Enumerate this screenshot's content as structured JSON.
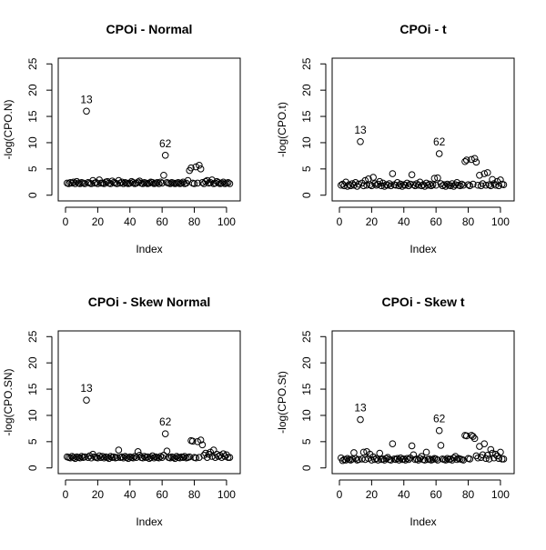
{
  "chart_data": [
    {
      "type": "scatter",
      "title": "CPOi - Normal",
      "xlabel": "Index",
      "ylabel": "-log(CPO.N)",
      "xlim": [
        0,
        104
      ],
      "ylim": [
        0,
        25
      ],
      "xticks": [
        0,
        20,
        40,
        60,
        80,
        100
      ],
      "yticks": [
        0,
        5,
        10,
        15,
        20,
        25
      ],
      "annotations": [
        {
          "label": "13",
          "x": 13,
          "y": 16.0
        },
        {
          "label": "62",
          "x": 62,
          "y": 7.6
        }
      ],
      "series": [
        {
          "x": [
            1,
            2,
            3,
            4,
            5,
            6,
            7,
            8,
            9,
            10,
            11,
            12,
            13,
            14,
            15,
            16,
            17,
            18,
            19,
            20,
            21,
            22,
            23,
            24,
            25,
            26,
            27,
            28,
            29,
            30,
            31,
            32,
            33,
            34,
            35,
            36,
            37,
            38,
            39,
            40,
            41,
            42,
            43,
            44,
            45,
            46,
            47,
            48,
            49,
            50,
            51,
            52,
            53,
            54,
            55,
            56,
            57,
            58,
            59,
            60,
            61,
            62,
            63,
            64,
            65,
            66,
            67,
            68,
            69,
            70,
            71,
            72,
            73,
            74,
            75,
            76,
            77,
            78,
            79,
            80,
            81,
            82,
            83,
            84,
            85,
            86,
            87,
            88,
            89,
            90,
            91,
            92,
            93,
            94,
            95,
            96,
            97,
            98,
            99,
            100,
            101,
            102
          ],
          "y": [
            2.3,
            2.2,
            2.4,
            2.3,
            2.5,
            2.2,
            2.6,
            2.3,
            2.2,
            2.4,
            2.3,
            2.2,
            16.0,
            2.4,
            2.3,
            2.2,
            2.8,
            2.3,
            2.4,
            2.2,
            2.9,
            2.3,
            2.3,
            2.2,
            2.5,
            2.6,
            2.3,
            2.2,
            2.7,
            2.4,
            2.3,
            2.2,
            2.8,
            2.3,
            2.5,
            2.2,
            2.4,
            2.3,
            2.2,
            2.3,
            2.6,
            2.4,
            2.2,
            2.3,
            2.5,
            2.7,
            2.3,
            2.2,
            2.4,
            2.3,
            2.2,
            2.3,
            2.5,
            2.4,
            2.2,
            2.3,
            2.4,
            2.2,
            2.5,
            2.3,
            3.8,
            7.6,
            2.4,
            2.3,
            2.2,
            2.4,
            2.3,
            2.2,
            2.3,
            2.4,
            2.2,
            2.3,
            2.5,
            2.2,
            2.3,
            2.8,
            4.7,
            5.2,
            2.3,
            2.2,
            5.4,
            2.3,
            5.7,
            5.0,
            2.4,
            2.2,
            2.6,
            2.8,
            2.3,
            2.4,
            2.9,
            2.2,
            2.3,
            2.6,
            2.4,
            2.2,
            2.3,
            2.5,
            2.2,
            2.3,
            2.4,
            2.2
          ]
        }
      ]
    },
    {
      "type": "scatter",
      "title": "CPOi - t",
      "xlabel": "Index",
      "ylabel": "-log(CPO.t)",
      "xlim": [
        0,
        104
      ],
      "ylim": [
        0,
        25
      ],
      "xticks": [
        0,
        20,
        40,
        60,
        80,
        100
      ],
      "yticks": [
        0,
        5,
        10,
        15,
        20,
        25
      ],
      "annotations": [
        {
          "label": "13",
          "x": 13,
          "y": 10.2
        },
        {
          "label": "62",
          "x": 62,
          "y": 7.9
        }
      ],
      "series": [
        {
          "x": [
            1,
            2,
            3,
            4,
            5,
            6,
            7,
            8,
            9,
            10,
            11,
            12,
            13,
            14,
            15,
            16,
            17,
            18,
            19,
            20,
            21,
            22,
            23,
            24,
            25,
            26,
            27,
            28,
            29,
            30,
            31,
            32,
            33,
            34,
            35,
            36,
            37,
            38,
            39,
            40,
            41,
            42,
            43,
            44,
            45,
            46,
            47,
            48,
            49,
            50,
            51,
            52,
            53,
            54,
            55,
            56,
            57,
            58,
            59,
            60,
            61,
            62,
            63,
            64,
            65,
            66,
            67,
            68,
            69,
            70,
            71,
            72,
            73,
            74,
            75,
            76,
            77,
            78,
            79,
            80,
            81,
            82,
            83,
            84,
            85,
            86,
            87,
            88,
            89,
            90,
            91,
            92,
            93,
            94,
            95,
            96,
            97,
            98,
            99,
            100,
            101,
            102
          ],
          "y": [
            1.9,
            2.1,
            1.8,
            2.5,
            1.7,
            2.0,
            1.8,
            2.2,
            1.9,
            2.4,
            1.7,
            2.1,
            10.2,
            2.3,
            1.8,
            2.8,
            1.9,
            3.1,
            2.0,
            1.8,
            3.4,
            2.2,
            1.9,
            2.1,
            2.6,
            1.8,
            2.3,
            1.7,
            2.0,
            1.9,
            2.2,
            1.8,
            4.1,
            2.0,
            1.9,
            2.4,
            1.8,
            2.1,
            1.7,
            2.0,
            1.9,
            2.3,
            1.8,
            2.1,
            3.9,
            2.0,
            1.8,
            2.2,
            1.9,
            2.5,
            1.8,
            2.0,
            1.7,
            2.3,
            1.9,
            2.1,
            1.8,
            2.0,
            3.2,
            1.9,
            3.3,
            7.9,
            2.2,
            1.8,
            2.0,
            1.7,
            2.1,
            1.9,
            1.8,
            2.2,
            1.7,
            2.0,
            2.4,
            1.9,
            1.8,
            2.1,
            1.9,
            6.4,
            6.7,
            2.0,
            1.8,
            6.8,
            2.1,
            7.0,
            6.3,
            1.9,
            3.8,
            1.8,
            2.2,
            4.1,
            1.9,
            4.3,
            2.0,
            1.8,
            3.0,
            2.2,
            1.9,
            2.6,
            1.8,
            2.9,
            2.1,
            2.0
          ]
        }
      ]
    },
    {
      "type": "scatter",
      "title": "CPOi - Skew Normal",
      "xlabel": "Index",
      "ylabel": "-log(CPO.SN)",
      "xlim": [
        0,
        104
      ],
      "ylim": [
        0,
        25
      ],
      "xticks": [
        0,
        20,
        40,
        60,
        80,
        100
      ],
      "yticks": [
        0,
        5,
        10,
        15,
        20,
        25
      ],
      "annotations": [
        {
          "label": "13",
          "x": 13,
          "y": 12.9
        },
        {
          "label": "62",
          "x": 62,
          "y": 6.5
        }
      ],
      "series": [
        {
          "x": [
            1,
            2,
            3,
            4,
            5,
            6,
            7,
            8,
            9,
            10,
            11,
            12,
            13,
            14,
            15,
            16,
            17,
            18,
            19,
            20,
            21,
            22,
            23,
            24,
            25,
            26,
            27,
            28,
            29,
            30,
            31,
            32,
            33,
            34,
            35,
            36,
            37,
            38,
            39,
            40,
            41,
            42,
            43,
            44,
            45,
            46,
            47,
            48,
            49,
            50,
            51,
            52,
            53,
            54,
            55,
            56,
            57,
            58,
            59,
            60,
            61,
            62,
            63,
            64,
            65,
            66,
            67,
            68,
            69,
            70,
            71,
            72,
            73,
            74,
            75,
            76,
            77,
            78,
            79,
            80,
            81,
            82,
            83,
            84,
            85,
            86,
            87,
            88,
            89,
            90,
            91,
            92,
            93,
            94,
            95,
            96,
            97,
            98,
            99,
            100,
            101,
            102
          ],
          "y": [
            2.1,
            2.0,
            1.9,
            2.2,
            2.0,
            1.8,
            2.1,
            2.0,
            1.9,
            2.2,
            2.0,
            2.1,
            12.9,
            2.0,
            2.3,
            1.9,
            2.6,
            2.1,
            2.0,
            1.9,
            2.3,
            2.0,
            2.2,
            1.9,
            2.1,
            2.0,
            1.8,
            2.2,
            2.0,
            2.1,
            1.9,
            2.0,
            3.4,
            2.0,
            2.1,
            1.9,
            2.2,
            2.0,
            1.8,
            2.1,
            2.0,
            1.9,
            2.2,
            2.0,
            3.1,
            2.4,
            2.0,
            1.9,
            2.2,
            2.0,
            2.1,
            1.8,
            2.0,
            2.3,
            1.9,
            2.1,
            2.0,
            1.9,
            2.2,
            2.0,
            2.4,
            6.5,
            3.2,
            2.0,
            1.9,
            2.1,
            2.0,
            1.8,
            2.2,
            2.0,
            1.9,
            2.1,
            2.0,
            2.2,
            1.9,
            2.0,
            2.1,
            5.2,
            5.1,
            2.0,
            1.9,
            5.0,
            2.0,
            5.3,
            4.4,
            2.4,
            2.8,
            2.0,
            2.6,
            3.0,
            2.2,
            3.4,
            2.0,
            2.6,
            2.2,
            2.4,
            2.0,
            2.7,
            2.2,
            2.5,
            2.0,
            2.0
          ]
        }
      ]
    },
    {
      "type": "scatter",
      "title": "CPOi - Skew t",
      "xlabel": "Index",
      "ylabel": "-log(CPO.St)",
      "xlim": [
        0,
        104
      ],
      "ylim": [
        0,
        25
      ],
      "xticks": [
        0,
        20,
        40,
        60,
        80,
        100
      ],
      "yticks": [
        0,
        5,
        10,
        15,
        20,
        25
      ],
      "annotations": [
        {
          "label": "13",
          "x": 13,
          "y": 9.2
        },
        {
          "label": "62",
          "x": 62,
          "y": 7.1
        }
      ],
      "series": [
        {
          "x": [
            1,
            2,
            3,
            4,
            5,
            6,
            7,
            8,
            9,
            10,
            11,
            12,
            13,
            14,
            15,
            16,
            17,
            18,
            19,
            20,
            21,
            22,
            23,
            24,
            25,
            26,
            27,
            28,
            29,
            30,
            31,
            32,
            33,
            34,
            35,
            36,
            37,
            38,
            39,
            40,
            41,
            42,
            43,
            44,
            45,
            46,
            47,
            48,
            49,
            50,
            51,
            52,
            53,
            54,
            55,
            56,
            57,
            58,
            59,
            60,
            61,
            62,
            63,
            64,
            65,
            66,
            67,
            68,
            69,
            70,
            71,
            72,
            73,
            74,
            75,
            76,
            77,
            78,
            79,
            80,
            81,
            82,
            83,
            84,
            85,
            86,
            87,
            88,
            89,
            90,
            91,
            92,
            93,
            94,
            95,
            96,
            97,
            98,
            99,
            100,
            101,
            102
          ],
          "y": [
            1.9,
            1.4,
            1.6,
            1.5,
            1.8,
            1.6,
            1.5,
            1.7,
            2.9,
            1.8,
            1.5,
            1.6,
            9.2,
            1.7,
            3.0,
            1.6,
            3.1,
            1.8,
            2.6,
            1.5,
            2.1,
            1.6,
            1.8,
            1.5,
            2.8,
            1.6,
            1.7,
            1.5,
            1.8,
            2.0,
            1.6,
            1.5,
            4.6,
            1.7,
            1.6,
            1.8,
            1.5,
            1.9,
            1.6,
            1.7,
            1.5,
            1.8,
            1.6,
            1.9,
            4.2,
            2.5,
            1.6,
            1.7,
            1.5,
            1.8,
            2.2,
            1.6,
            1.5,
            3.0,
            1.6,
            1.7,
            1.5,
            1.6,
            1.8,
            1.7,
            1.5,
            7.1,
            4.3,
            1.7,
            1.6,
            1.5,
            1.8,
            1.6,
            1.7,
            1.5,
            1.9,
            2.2,
            1.6,
            1.8,
            1.7,
            1.6,
            1.5,
            6.2,
            6.1,
            1.8,
            1.7,
            6.2,
            6.0,
            5.6,
            2.3,
            1.9,
            4.1,
            2.0,
            2.5,
            4.6,
            1.8,
            2.4,
            1.7,
            3.5,
            2.8,
            1.9,
            2.6,
            2.3,
            1.8,
            3.0,
            1.7,
            1.7
          ]
        }
      ]
    }
  ]
}
